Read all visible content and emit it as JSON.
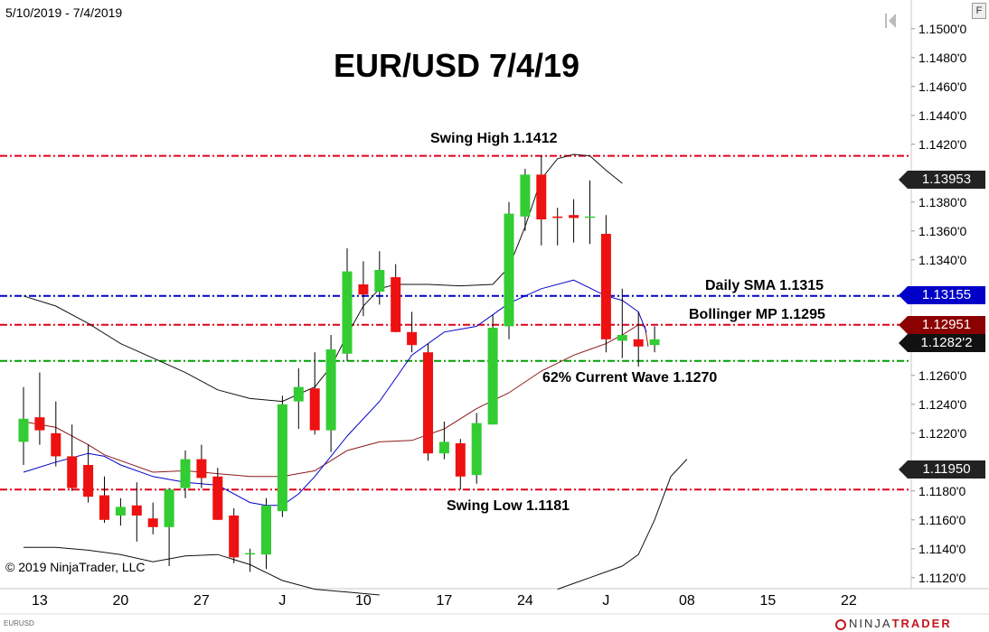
{
  "header": {
    "date_range": "5/10/2019 - 7/4/2019",
    "title": "EUR/USD 7/4/19",
    "settings_button": "F"
  },
  "footer": {
    "copyright": "© 2019 NinjaTrader, LLC",
    "symbol": "EURUSD",
    "logo_left": "NINJA",
    "logo_right": "TRADER"
  },
  "chart_data": {
    "type": "candlestick",
    "title": "EUR/USD 7/4/19",
    "ylim": [
      1.1114,
      1.1514
    ],
    "y_ticks": [
      "1.1500'0",
      "1.1480'0",
      "1.1460'0",
      "1.1440'0",
      "1.1420'0",
      "1.1380'0",
      "1.1360'0",
      "1.1340'0",
      "1.1260'0",
      "1.1240'0",
      "1.1220'0",
      "1.1180'0",
      "1.1160'0",
      "1.1140'0",
      "1.1120'0"
    ],
    "y_tick_values": [
      1.15,
      1.148,
      1.146,
      1.144,
      1.142,
      1.138,
      1.136,
      1.134,
      1.126,
      1.124,
      1.122,
      1.118,
      1.116,
      1.114,
      1.112
    ],
    "x_ticks": [
      {
        "label": "13",
        "bar": 1
      },
      {
        "label": "20",
        "bar": 6
      },
      {
        "label": "27",
        "bar": 11
      },
      {
        "label": "J",
        "bar": 16
      },
      {
        "label": "10",
        "bar": 21
      },
      {
        "label": "17",
        "bar": 26
      },
      {
        "label": "24",
        "bar": 31
      },
      {
        "label": "J",
        "bar": 36
      },
      {
        "label": "08",
        "bar": 41
      },
      {
        "label": "15",
        "bar": 46
      },
      {
        "label": "22",
        "bar": 51
      }
    ],
    "candles": [
      {
        "date": "2019-05-10",
        "o": 1.1214,
        "h": 1.1252,
        "l": 1.1198,
        "c": 1.123
      },
      {
        "date": "2019-05-13",
        "o": 1.1231,
        "h": 1.1262,
        "l": 1.1212,
        "c": 1.1222
      },
      {
        "date": "2019-05-14",
        "o": 1.122,
        "h": 1.1242,
        "l": 1.1197,
        "c": 1.1204
      },
      {
        "date": "2019-05-15",
        "o": 1.1204,
        "h": 1.1226,
        "l": 1.118,
        "c": 1.1182
      },
      {
        "date": "2019-05-16",
        "o": 1.1198,
        "h": 1.1212,
        "l": 1.1172,
        "c": 1.1176
      },
      {
        "date": "2019-05-17",
        "o": 1.1177,
        "h": 1.119,
        "l": 1.1158,
        "c": 1.116
      },
      {
        "date": "2019-05-20",
        "o": 1.1163,
        "h": 1.1175,
        "l": 1.1156,
        "c": 1.1169
      },
      {
        "date": "2019-05-21",
        "o": 1.117,
        "h": 1.1186,
        "l": 1.1145,
        "c": 1.1163
      },
      {
        "date": "2019-05-22",
        "o": 1.1161,
        "h": 1.1172,
        "l": 1.115,
        "c": 1.1155
      },
      {
        "date": "2019-05-23",
        "o": 1.1155,
        "h": 1.1182,
        "l": 1.1128,
        "c": 1.1181
      },
      {
        "date": "2019-05-24",
        "o": 1.1182,
        "h": 1.1208,
        "l": 1.1175,
        "c": 1.1202
      },
      {
        "date": "2019-05-27",
        "o": 1.1202,
        "h": 1.1212,
        "l": 1.1182,
        "c": 1.1189
      },
      {
        "date": "2019-05-28",
        "o": 1.119,
        "h": 1.1196,
        "l": 1.116,
        "c": 1.116
      },
      {
        "date": "2019-05-29",
        "o": 1.1163,
        "h": 1.1168,
        "l": 1.113,
        "c": 1.1134
      },
      {
        "date": "2019-05-30",
        "o": 1.1137,
        "h": 1.114,
        "l": 1.1124,
        "c": 1.1137
      },
      {
        "date": "2019-05-31",
        "o": 1.1136,
        "h": 1.1175,
        "l": 1.1126,
        "c": 1.117
      },
      {
        "date": "2019-06-03",
        "o": 1.1166,
        "h": 1.1246,
        "l": 1.1162,
        "c": 1.124
      },
      {
        "date": "2019-06-04",
        "o": 1.1242,
        "h": 1.1265,
        "l": 1.1223,
        "c": 1.1252
      },
      {
        "date": "2019-06-05",
        "o": 1.1251,
        "h": 1.1276,
        "l": 1.1219,
        "c": 1.1222
      },
      {
        "date": "2019-06-06",
        "o": 1.1222,
        "h": 1.1288,
        "l": 1.1207,
        "c": 1.1278
      },
      {
        "date": "2019-06-07",
        "o": 1.1275,
        "h": 1.1348,
        "l": 1.127,
        "c": 1.1332
      },
      {
        "date": "2019-06-10",
        "o": 1.1323,
        "h": 1.1339,
        "l": 1.1301,
        "c": 1.1316
      },
      {
        "date": "2019-06-11",
        "o": 1.1318,
        "h": 1.1346,
        "l": 1.1309,
        "c": 1.1333
      },
      {
        "date": "2019-06-12",
        "o": 1.1328,
        "h": 1.1337,
        "l": 1.129,
        "c": 1.129
      },
      {
        "date": "2019-06-13",
        "o": 1.129,
        "h": 1.1304,
        "l": 1.1276,
        "c": 1.1281
      },
      {
        "date": "2019-06-14",
        "o": 1.1276,
        "h": 1.1282,
        "l": 1.1201,
        "c": 1.1206
      },
      {
        "date": "2019-06-17",
        "o": 1.1206,
        "h": 1.1228,
        "l": 1.1202,
        "c": 1.1214
      },
      {
        "date": "2019-06-18",
        "o": 1.1213,
        "h": 1.1216,
        "l": 1.1181,
        "c": 1.119
      },
      {
        "date": "2019-06-19",
        "o": 1.1191,
        "h": 1.1234,
        "l": 1.1185,
        "c": 1.1227
      },
      {
        "date": "2019-06-20",
        "o": 1.1226,
        "h": 1.1302,
        "l": 1.1226,
        "c": 1.1293
      },
      {
        "date": "2019-06-21",
        "o": 1.1294,
        "h": 1.138,
        "l": 1.1285,
        "c": 1.1372
      },
      {
        "date": "2019-06-24",
        "o": 1.137,
        "h": 1.1403,
        "l": 1.136,
        "c": 1.1399
      },
      {
        "date": "2019-06-25",
        "o": 1.1399,
        "h": 1.1412,
        "l": 1.135,
        "c": 1.1368
      },
      {
        "date": "2019-06-26",
        "o": 1.137,
        "h": 1.1376,
        "l": 1.135,
        "c": 1.1369
      },
      {
        "date": "2019-06-27",
        "o": 1.1371,
        "h": 1.1382,
        "l": 1.1352,
        "c": 1.1369
      },
      {
        "date": "2019-06-28",
        "o": 1.137,
        "h": 1.1395,
        "l": 1.1351,
        "c": 1.137
      },
      {
        "date": "2019-07-01",
        "o": 1.1358,
        "h": 1.1371,
        "l": 1.1276,
        "c": 1.1285
      },
      {
        "date": "2019-07-02",
        "o": 1.1284,
        "h": 1.132,
        "l": 1.1272,
        "c": 1.1288
      },
      {
        "date": "2019-07-03",
        "o": 1.1285,
        "h": 1.1304,
        "l": 1.1266,
        "c": 1.128
      },
      {
        "date": "2019-07-04",
        "o": 1.1281,
        "h": 1.1294,
        "l": 1.1276,
        "c": 1.1285
      }
    ],
    "indicators": {
      "bollinger_upper": [
        null,
        null,
        null,
        null,
        null,
        null,
        null,
        null,
        null,
        null,
        null,
        null,
        null,
        null,
        null,
        null,
        null,
        null,
        null,
        null,
        null,
        null,
        null,
        null,
        null,
        null,
        null,
        null,
        null,
        null,
        null,
        null,
        null,
        null,
        null,
        null,
        null,
        null,
        null,
        null
      ],
      "bollinger_upper_path": [
        [
          0,
          1.1315
        ],
        [
          2,
          1.1308
        ],
        [
          4,
          1.1296
        ],
        [
          6,
          1.1282
        ],
        [
          8,
          1.1272
        ],
        [
          10,
          1.1262
        ],
        [
          12,
          1.125
        ],
        [
          14,
          1.1244
        ],
        [
          16,
          1.1242
        ],
        [
          18,
          1.1252
        ],
        [
          19,
          1.1266
        ],
        [
          20,
          1.1288
        ],
        [
          21,
          1.1308
        ],
        [
          22,
          1.132
        ],
        [
          23,
          1.1323
        ],
        [
          25,
          1.1323
        ],
        [
          27,
          1.1322
        ],
        [
          29,
          1.1323
        ],
        [
          30,
          1.1335
        ],
        [
          31,
          1.1363
        ],
        [
          32,
          1.1396
        ],
        [
          33,
          1.141
        ],
        [
          34,
          1.1413
        ],
        [
          35,
          1.1412
        ],
        [
          36,
          1.1402
        ],
        [
          37,
          1.1393
        ]
      ],
      "bollinger_mid_path": [
        [
          0,
          1.1228
        ],
        [
          2,
          1.1224
        ],
        [
          4,
          1.1212
        ],
        [
          5,
          1.1205
        ],
        [
          6,
          1.1201
        ],
        [
          8,
          1.1193
        ],
        [
          10,
          1.1194
        ],
        [
          12,
          1.1192
        ],
        [
          14,
          1.119
        ],
        [
          16,
          1.119
        ],
        [
          18,
          1.1194
        ],
        [
          20,
          1.1208
        ],
        [
          22,
          1.1214
        ],
        [
          24,
          1.1215
        ],
        [
          26,
          1.1223
        ],
        [
          28,
          1.1237
        ],
        [
          30,
          1.1248
        ],
        [
          32,
          1.1263
        ],
        [
          34,
          1.1274
        ],
        [
          35,
          1.1278
        ],
        [
          36,
          1.1282
        ],
        [
          37,
          1.1288
        ],
        [
          38,
          1.1295
        ],
        [
          38.4,
          1.1294
        ],
        [
          38.6,
          1.128
        ]
      ],
      "daily_sma_path": [
        [
          0,
          1.1193
        ],
        [
          2,
          1.12
        ],
        [
          4,
          1.1206
        ],
        [
          5,
          1.1204
        ],
        [
          6,
          1.1198
        ],
        [
          8,
          1.119
        ],
        [
          10,
          1.1186
        ],
        [
          12,
          1.1184
        ],
        [
          14,
          1.1172
        ],
        [
          15,
          1.117
        ],
        [
          16,
          1.117
        ],
        [
          17,
          1.1178
        ],
        [
          18,
          1.119
        ],
        [
          20,
          1.1218
        ],
        [
          22,
          1.1242
        ],
        [
          23,
          1.1258
        ],
        [
          24,
          1.1274
        ],
        [
          26,
          1.129
        ],
        [
          28,
          1.1294
        ],
        [
          30,
          1.131
        ],
        [
          32,
          1.132
        ],
        [
          34,
          1.1326
        ],
        [
          36,
          1.1315
        ],
        [
          37,
          1.1312
        ],
        [
          38,
          1.1304
        ],
        [
          38.5,
          1.129
        ]
      ],
      "bollinger_lower_path": [
        [
          0,
          1.1141
        ],
        [
          2,
          1.1141
        ],
        [
          4,
          1.1139
        ],
        [
          6,
          1.1136
        ],
        [
          8,
          1.1131
        ],
        [
          10,
          1.1135
        ],
        [
          12,
          1.1136
        ],
        [
          14,
          1.1129
        ],
        [
          16,
          1.1118
        ],
        [
          18,
          1.1112
        ],
        [
          20,
          1.111
        ],
        [
          22,
          1.1108
        ]
      ],
      "bollinger_lower_right_path": [
        [
          33,
          1.1112
        ],
        [
          35,
          1.112
        ],
        [
          37,
          1.1128
        ],
        [
          38,
          1.1136
        ],
        [
          39,
          1.116
        ],
        [
          40,
          1.119
        ],
        [
          41,
          1.1202
        ]
      ]
    },
    "horizontal_lines": [
      {
        "label": "Swing High 1.1412",
        "value": 1.1412,
        "color": "#e0001b"
      },
      {
        "label": "Daily SMA 1.1315",
        "value": 1.1315,
        "color": "#0000c8"
      },
      {
        "label": "Bollinger MP 1.1295",
        "value": 1.1295,
        "color": "#e0001b"
      },
      {
        "label": "62% Current Wave 1.1270",
        "value": 1.127,
        "color": "#00a000"
      },
      {
        "label": "Swing Low 1.1181",
        "value": 1.1181,
        "color": "#e0001b"
      }
    ],
    "price_markers": [
      {
        "label": "1.13953",
        "value": 1.13953,
        "color": "#222222"
      },
      {
        "label": "1.13155",
        "value": 1.13155,
        "color": "#0000c8"
      },
      {
        "label": "1.12951",
        "value": 1.12951,
        "color": "#8b0000"
      },
      {
        "label": "1.1282'2",
        "value": 1.12822,
        "color": "#111111"
      },
      {
        "label": "1.11950",
        "value": 1.1195,
        "color": "#222222"
      }
    ],
    "colors": {
      "up": "#33cc33",
      "down": "#ee1111",
      "bb_band": "#111111",
      "bb_mid": "#8b1a1a",
      "sma": "#0000c8"
    }
  }
}
